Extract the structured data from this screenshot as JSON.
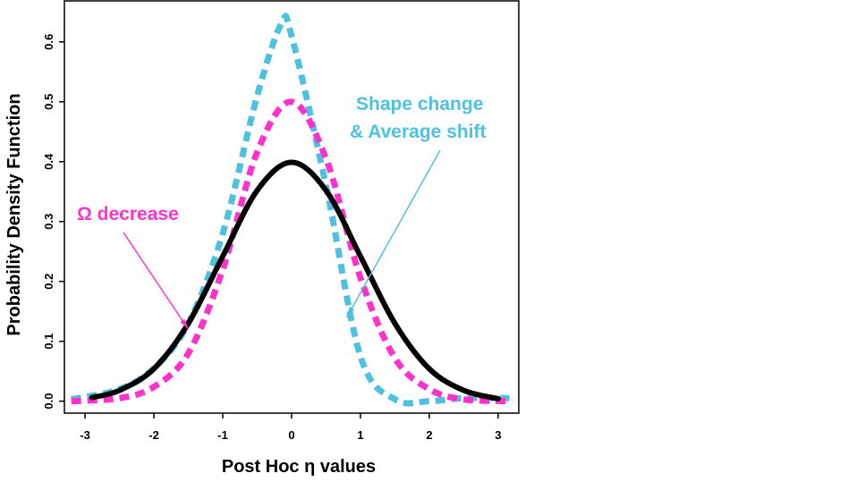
{
  "chart_data": {
    "type": "line",
    "title": "",
    "xlabel": "Post Hoc η values",
    "ylabel": "Probability Density Function",
    "xlim": [
      -3.3,
      3.3
    ],
    "ylim": [
      -0.02,
      0.67
    ],
    "x_ticks": [
      -3,
      -2,
      -1,
      0,
      1,
      2,
      3
    ],
    "x_tick_labels": [
      "-3",
      "-2",
      "-1",
      "0",
      "1",
      "2",
      "3"
    ],
    "y_ticks": [
      0.0,
      0.1,
      0.2,
      0.3,
      0.4,
      0.5,
      0.6
    ],
    "y_tick_labels": [
      "0.0",
      "0.1",
      "0.2",
      "0.3",
      "0.4",
      "0.5",
      "0.6"
    ],
    "grid": false,
    "legend": "none",
    "series": [
      {
        "style": "solid",
        "color": "#000000",
        "x": [
          -2.9,
          -2.5,
          -2.0,
          -1.5,
          -1.0,
          -0.5,
          0.0,
          0.5,
          1.0,
          1.5,
          2.0,
          2.5,
          3.0
        ],
        "y": [
          0.006,
          0.018,
          0.054,
          0.13,
          0.242,
          0.352,
          0.399,
          0.352,
          0.242,
          0.13,
          0.054,
          0.018,
          0.004
        ]
      },
      {
        "style": "dashed",
        "color": "#ff33cc",
        "x": [
          -3.2,
          -2.5,
          -2.0,
          -1.5,
          -1.0,
          -0.5,
          0.0,
          0.5,
          1.0,
          1.5,
          2.0,
          2.5,
          3.2
        ],
        "y": [
          0.0,
          0.005,
          0.024,
          0.08,
          0.22,
          0.416,
          0.5,
          0.405,
          0.206,
          0.072,
          0.02,
          0.003,
          0.0
        ]
      },
      {
        "style": "dashed",
        "color": "#4fc1e0",
        "x": [
          -3.2,
          -2.5,
          -2.0,
          -1.5,
          -1.0,
          -0.5,
          -0.15,
          0.0,
          0.5,
          1.0,
          1.5,
          2.0,
          2.5,
          3.2
        ],
        "y": [
          0.003,
          0.02,
          0.055,
          0.13,
          0.28,
          0.51,
          0.63,
          0.61,
          0.36,
          0.075,
          0.003,
          0.0,
          0.005,
          0.005
        ]
      }
    ],
    "annotations": [
      {
        "text": "Ω decrease",
        "color": "#ff33cc",
        "arrow_to": [
          -1.5,
          0.12
        ]
      },
      {
        "text": "Shape change",
        "color": "#4fc1e0",
        "arrow_to": [
          0.8,
          0.14
        ]
      },
      {
        "text": "& Average shift",
        "color": "#4fc1e0",
        "arrow_to": null
      }
    ]
  }
}
